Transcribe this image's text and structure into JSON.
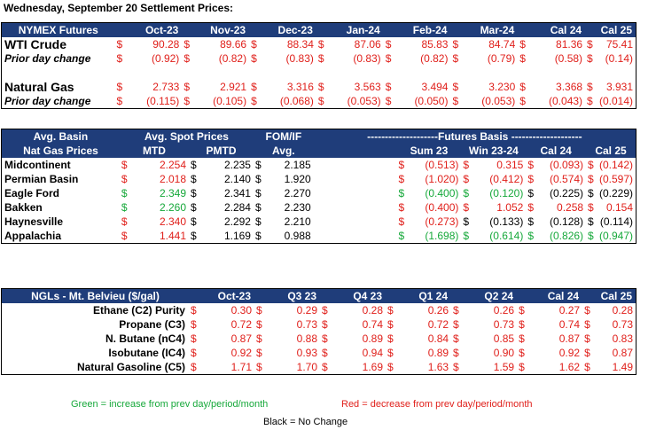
{
  "title": "Wednesday, September 20 Settlement Prices:",
  "nymex": {
    "header": [
      "NYMEX Futures",
      "Oct-23",
      "Nov-23",
      "Dec-23",
      "Jan-24",
      "Feb-24",
      "Mar-24",
      "Cal 24",
      "Cal 25"
    ],
    "rows": [
      {
        "label": "WTI Crude",
        "style": "big",
        "values": [
          "90.28",
          "89.66",
          "88.34",
          "87.06",
          "85.83",
          "84.74",
          "81.36",
          "75.41"
        ],
        "colors": [
          "red",
          "red",
          "red",
          "red",
          "red",
          "red",
          "red",
          "red"
        ]
      },
      {
        "label": "Prior day change",
        "style": "ital",
        "values": [
          "(0.92)",
          "(0.82)",
          "(0.83)",
          "(0.83)",
          "(0.82)",
          "(0.79)",
          "(0.58)",
          "(0.14)"
        ],
        "colors": [
          "red",
          "red",
          "red",
          "red",
          "red",
          "red",
          "red",
          "red"
        ]
      },
      {
        "label": "",
        "style": "",
        "values": [
          "",
          "",
          "",
          "",
          "",
          "",
          "",
          ""
        ],
        "colors": [
          "",
          "",
          "",
          "",
          "",
          "",
          "",
          ""
        ]
      },
      {
        "label": "Natural Gas",
        "style": "big",
        "values": [
          "2.733",
          "2.921",
          "3.316",
          "3.563",
          "3.494",
          "3.230",
          "3.368",
          "3.931"
        ],
        "colors": [
          "red",
          "red",
          "red",
          "red",
          "red",
          "red",
          "red",
          "red"
        ]
      },
      {
        "label": "Prior day change",
        "style": "ital",
        "values": [
          "(0.115)",
          "(0.105)",
          "(0.068)",
          "(0.053)",
          "(0.050)",
          "(0.053)",
          "(0.043)",
          "(0.014)"
        ],
        "colors": [
          "red",
          "red",
          "red",
          "red",
          "red",
          "red",
          "red",
          "red"
        ]
      }
    ]
  },
  "basin": {
    "header1": {
      "col0": "Avg. Basin",
      "spot": "Avg. Spot Prices",
      "fom": "FOM/IF",
      "futures": "--------------------Futures Basis --------------------"
    },
    "header2": [
      "Nat Gas Prices",
      "MTD",
      "PMTD",
      "Avg.",
      "Sum 23",
      "Win 23-24",
      "Cal 24",
      "Cal 25"
    ],
    "rows": [
      {
        "label": "Midcontinent",
        "values": [
          "2.254",
          "2.235",
          "2.185",
          "(0.513)",
          "0.315",
          "(0.093)",
          "(0.142)"
        ],
        "colors": [
          "red",
          "blk",
          "blk",
          "red",
          "red",
          "red",
          "red"
        ]
      },
      {
        "label": "Permian Basin",
        "values": [
          "2.018",
          "2.140",
          "1.920",
          "(1.020)",
          "(0.412)",
          "(0.574)",
          "(0.597)"
        ],
        "colors": [
          "red",
          "blk",
          "blk",
          "red",
          "red",
          "red",
          "red"
        ]
      },
      {
        "label": "Eagle Ford",
        "values": [
          "2.349",
          "2.341",
          "2.270",
          "(0.400)",
          "(0.120)",
          "(0.225)",
          "(0.229)"
        ],
        "colors": [
          "green",
          "blk",
          "blk",
          "green",
          "green",
          "blk",
          "blk"
        ]
      },
      {
        "label": "Bakken",
        "values": [
          "2.260",
          "2.284",
          "2.230",
          "(0.400)",
          "1.052",
          "0.258",
          "0.154"
        ],
        "colors": [
          "green",
          "blk",
          "blk",
          "red",
          "red",
          "red",
          "red"
        ]
      },
      {
        "label": "Haynesville",
        "values": [
          "2.340",
          "2.292",
          "2.210",
          "(0.273)",
          "(0.133)",
          "(0.128)",
          "(0.114)"
        ],
        "colors": [
          "red",
          "blk",
          "blk",
          "red",
          "blk",
          "blk",
          "blk"
        ]
      },
      {
        "label": "Appalachia",
        "values": [
          "1.441",
          "1.169",
          "0.988",
          "(1.698)",
          "(0.614)",
          "(0.826)",
          "(0.947)"
        ],
        "colors": [
          "red",
          "blk",
          "blk",
          "green",
          "green",
          "green",
          "green"
        ]
      }
    ]
  },
  "ngl": {
    "header": [
      "NGLs - Mt. Belvieu ($/gal)",
      "Oct-23",
      "Q3 23",
      "Q4 23",
      "Q1 24",
      "Q2 24",
      "Cal 24",
      "Cal 25"
    ],
    "rows": [
      {
        "label": "Ethane (C2) Purity",
        "values": [
          "0.30",
          "0.29",
          "0.28",
          "0.26",
          "0.26",
          "0.27",
          "0.28"
        ]
      },
      {
        "label": "Propane (C3)",
        "values": [
          "0.72",
          "0.73",
          "0.74",
          "0.72",
          "0.73",
          "0.74",
          "0.73"
        ]
      },
      {
        "label": "N. Butane (nC4)",
        "values": [
          "0.87",
          "0.88",
          "0.89",
          "0.84",
          "0.85",
          "0.87",
          "0.83"
        ]
      },
      {
        "label": "Isobutane (IC4)",
        "values": [
          "0.92",
          "0.93",
          "0.94",
          "0.89",
          "0.90",
          "0.92",
          "0.87"
        ]
      },
      {
        "label": "Natural Gasoline (C5)",
        "values": [
          "1.71",
          "1.70",
          "1.69",
          "1.63",
          "1.59",
          "1.62",
          "1.49"
        ]
      }
    ]
  },
  "legend": {
    "green": "Green = increase from prev day/period/month",
    "red": "Red = decrease from prev day/period/month",
    "black": "Black = No Change"
  },
  "colors": {
    "header_bg": "#1f3d7a",
    "red": "#e0201b",
    "green": "#16a83a"
  }
}
